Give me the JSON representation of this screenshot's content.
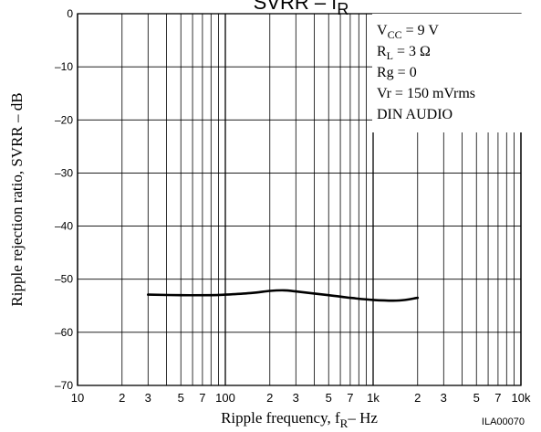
{
  "chart_data": {
    "type": "line",
    "title": "SVRR – f",
    "title_subscript": "R",
    "xlabel": "Ripple frequency,  f",
    "xlabel_subscript": "R",
    "xlabel_unit": "–  Hz",
    "ylabel": "Ripple rejection ratio,  SVRR  –  dB",
    "figure_id": "ILA00070",
    "x_scale": "log",
    "xlim": [
      10,
      10000
    ],
    "ylim": [
      -70,
      0
    ],
    "grid": true,
    "x_ticks": [
      {
        "value": 10,
        "label": "10",
        "major": true
      },
      {
        "value": 20,
        "label": "2",
        "major": false
      },
      {
        "value": 30,
        "label": "3",
        "major": false
      },
      {
        "value": 50,
        "label": "5",
        "major": false
      },
      {
        "value": 70,
        "label": "7",
        "major": false
      },
      {
        "value": 100,
        "label": "100",
        "major": true
      },
      {
        "value": 200,
        "label": "2",
        "major": false
      },
      {
        "value": 300,
        "label": "3",
        "major": false
      },
      {
        "value": 500,
        "label": "5",
        "major": false
      },
      {
        "value": 700,
        "label": "7",
        "major": false
      },
      {
        "value": 1000,
        "label": "1k",
        "major": true
      },
      {
        "value": 2000,
        "label": "2",
        "major": false
      },
      {
        "value": 3000,
        "label": "3",
        "major": false
      },
      {
        "value": 5000,
        "label": "5",
        "major": false
      },
      {
        "value": 7000,
        "label": "7",
        "major": false
      },
      {
        "value": 10000,
        "label": "10k",
        "major": true
      }
    ],
    "y_ticks": [
      {
        "value": 0,
        "label": "0"
      },
      {
        "value": -10,
        "label": "–10"
      },
      {
        "value": -20,
        "label": "–20"
      },
      {
        "value": -30,
        "label": "–30"
      },
      {
        "value": -40,
        "label": "–40"
      },
      {
        "value": -50,
        "label": "–50"
      },
      {
        "value": -60,
        "label": "–60"
      },
      {
        "value": -70,
        "label": "–70"
      }
    ],
    "series": [
      {
        "x": [
          30,
          50,
          80,
          100,
          150,
          200,
          250,
          300,
          500,
          700,
          1000,
          1500,
          2000
        ],
        "y": [
          -52.9,
          -53.0,
          -53.0,
          -52.9,
          -52.6,
          -52.2,
          -52.1,
          -52.3,
          -53.0,
          -53.5,
          -53.9,
          -54.0,
          -53.5
        ]
      }
    ],
    "conditions": [
      {
        "main": "V",
        "sub": "CC",
        "rest": " = 9 V"
      },
      {
        "main": "R",
        "sub": "L",
        "rest": " = 3 Ω"
      },
      {
        "main": "Rg = 0",
        "sub": "",
        "rest": ""
      },
      {
        "main": "Vr = 150 mVrms",
        "sub": "",
        "rest": ""
      },
      {
        "main": "DIN AUDIO",
        "sub": "",
        "rest": ""
      }
    ]
  }
}
